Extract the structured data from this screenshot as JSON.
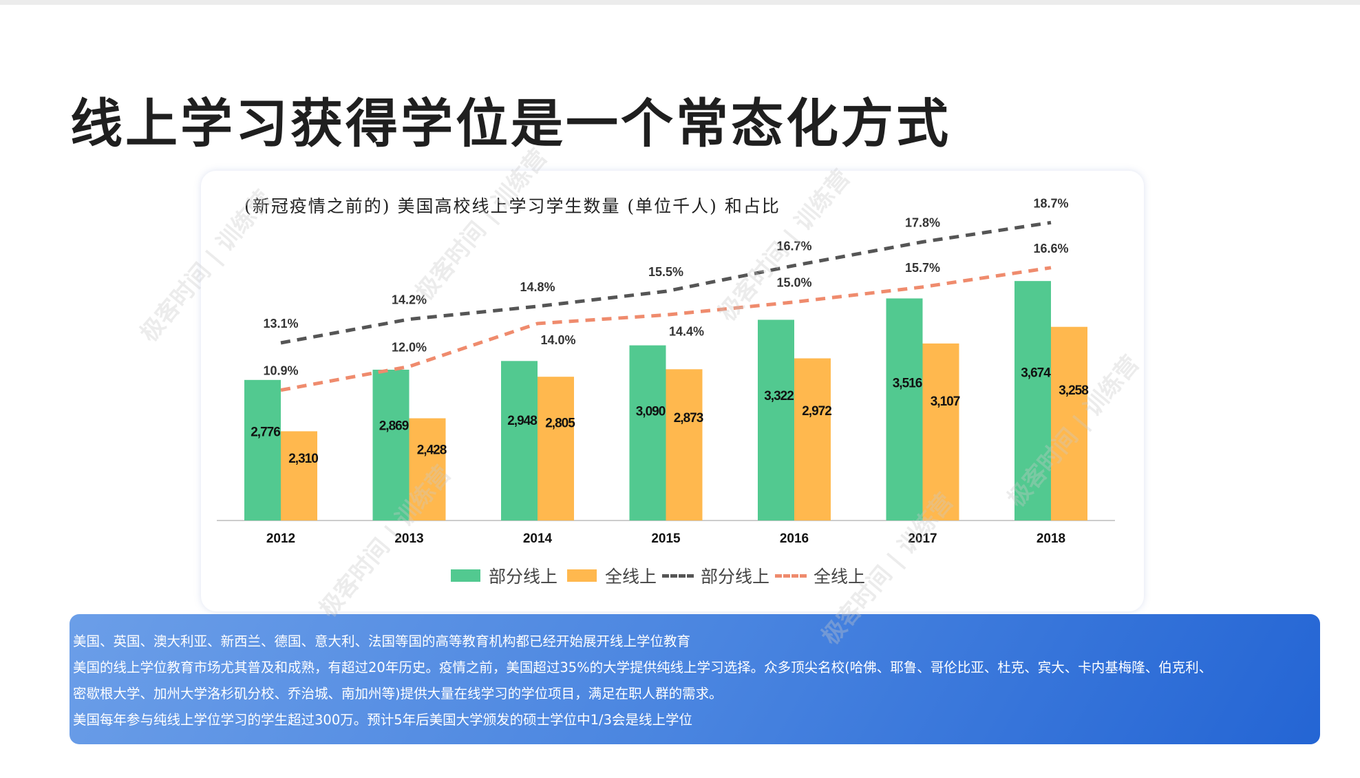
{
  "page_title": "线上学习获得学位是一个常态化方式",
  "watermark": "极客时间 | 训练营",
  "info_lines": [
    "美国、英国、澳大利亚、新西兰、德国、意大利、法国等国的高等教育机构都已经开始展开线上学位教育",
    "美国的线上学位教育市场尤其普及和成熟，有超过20年历史。疫情之前，美国超过35%的大学提供纯线上学习选择。众多顶尖名校(哈佛、耶鲁、哥伦比亚、杜克、宾大、卡内基梅隆、伯克利、",
    "密歇根大学、加州大学洛杉矶分校、乔治城、南加州等)提供大量在线学习的学位项目，满足在职人群的需求。",
    "美国每年参与纯线上学位学习的学生超过300万。预计5年后美国大学颁发的硕士学位中1/3会是线上学位"
  ],
  "chart_data": {
    "type": "bar",
    "title": "(新冠疫情之前的) 美国高校线上学习学生数量 (单位千人) 和占比",
    "categories": [
      "2012",
      "2013",
      "2014",
      "2015",
      "2016",
      "2017",
      "2018"
    ],
    "series": [
      {
        "name": "部分线上",
        "kind": "bar",
        "color": "#52c990",
        "values": [
          2776,
          2869,
          2948,
          3090,
          3322,
          3516,
          3674
        ],
        "labels": [
          "2,776",
          "2,869",
          "2,948",
          "3,090",
          "3,322",
          "3,516",
          "3,674"
        ]
      },
      {
        "name": "全线上",
        "kind": "bar",
        "color": "#ffb84e",
        "values": [
          2310,
          2428,
          2805,
          2873,
          2972,
          3107,
          3258
        ],
        "labels": [
          "2,310",
          "2,428",
          "2,805",
          "2,873",
          "2,972",
          "3,107",
          "3,258"
        ]
      },
      {
        "name": "部分线上",
        "kind": "line",
        "color": "#555555",
        "values": [
          13.1,
          14.2,
          14.8,
          15.5,
          16.7,
          17.8,
          18.7
        ],
        "labels": [
          "13.1%",
          "14.2%",
          "14.8%",
          "15.5%",
          "16.7%",
          "17.8%",
          "18.7%"
        ]
      },
      {
        "name": "全线上",
        "kind": "line",
        "color": "#ef8b6d",
        "values": [
          10.9,
          12.0,
          14.0,
          14.4,
          15.0,
          15.7,
          16.6
        ],
        "labels": [
          "10.9%",
          "12.0%",
          "14.0%",
          "14.4%",
          "15.0%",
          "15.7%",
          "16.6%"
        ]
      }
    ],
    "bar_ylim": [
      1500,
      4200
    ],
    "pct_ylim": [
      8,
      20
    ],
    "legend_position": "bottom",
    "grid": false
  }
}
